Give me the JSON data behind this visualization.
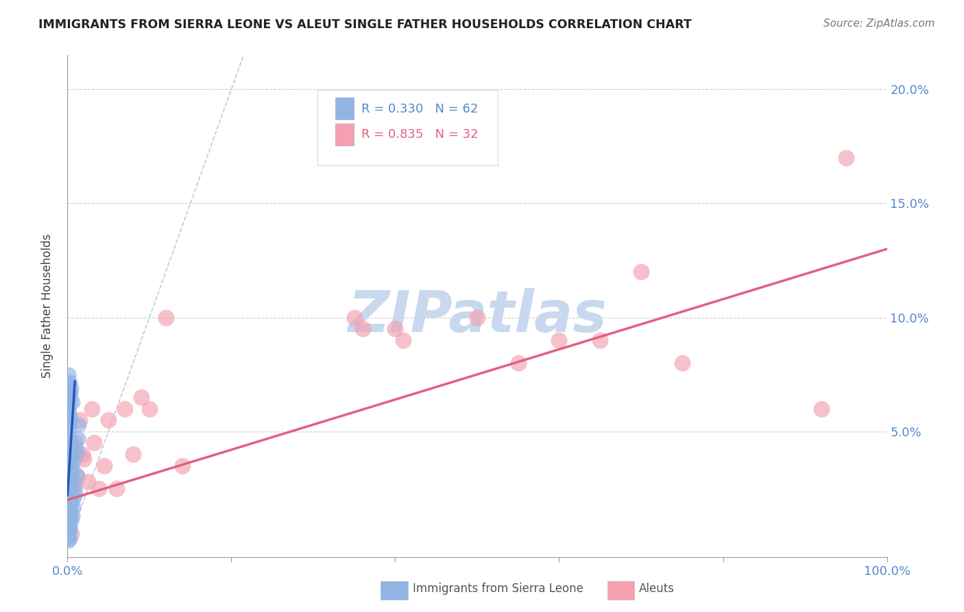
{
  "title": "IMMIGRANTS FROM SIERRA LEONE VS ALEUT SINGLE FATHER HOUSEHOLDS CORRELATION CHART",
  "source": "Source: ZipAtlas.com",
  "ylabel": "Single Father Households",
  "xlim": [
    0.0,
    1.0
  ],
  "ylim": [
    -0.005,
    0.215
  ],
  "xticks": [
    0.0,
    0.2,
    0.4,
    0.6,
    0.8,
    1.0
  ],
  "xticklabels": [
    "0.0%",
    "",
    "",
    "",
    "",
    "100.0%"
  ],
  "yticks": [
    0.0,
    0.05,
    0.1,
    0.15,
    0.2
  ],
  "yticklabels": [
    "",
    "5.0%",
    "10.0%",
    "15.0%",
    "20.0%"
  ],
  "blue_color": "#92b4e3",
  "pink_color": "#f4a0b0",
  "blue_line_color": "#2255bb",
  "pink_line_color": "#e06080",
  "legend_line1": "R = 0.330   N = 62",
  "legend_line2": "R = 0.835   N = 32",
  "legend_color1": "#5588cc",
  "legend_color2": "#e06080",
  "label_blue": "Immigrants from Sierra Leone",
  "label_pink": "Aleuts",
  "blue_scatter_x": [
    0.001,
    0.001,
    0.001,
    0.001,
    0.001,
    0.001,
    0.001,
    0.001,
    0.001,
    0.001,
    0.002,
    0.002,
    0.002,
    0.002,
    0.002,
    0.002,
    0.002,
    0.002,
    0.002,
    0.002,
    0.003,
    0.003,
    0.003,
    0.003,
    0.003,
    0.003,
    0.003,
    0.003,
    0.003,
    0.004,
    0.004,
    0.004,
    0.004,
    0.004,
    0.005,
    0.005,
    0.005,
    0.005,
    0.006,
    0.006,
    0.007,
    0.007,
    0.008,
    0.009,
    0.01,
    0.01,
    0.011,
    0.012,
    0.013,
    0.014,
    0.001,
    0.001,
    0.001,
    0.001,
    0.002,
    0.002,
    0.002,
    0.003,
    0.003,
    0.004,
    0.005,
    0.006
  ],
  "blue_scatter_y": [
    0.01,
    0.015,
    0.02,
    0.025,
    0.03,
    0.035,
    0.04,
    0.002,
    0.004,
    0.006,
    0.012,
    0.018,
    0.022,
    0.028,
    0.032,
    0.038,
    0.042,
    0.048,
    0.052,
    0.058,
    0.008,
    0.014,
    0.024,
    0.034,
    0.044,
    0.054,
    0.064,
    0.003,
    0.007,
    0.016,
    0.026,
    0.036,
    0.046,
    0.056,
    0.011,
    0.019,
    0.029,
    0.039,
    0.013,
    0.033,
    0.017,
    0.037,
    0.021,
    0.027,
    0.023,
    0.043,
    0.031,
    0.041,
    0.047,
    0.053,
    0.06,
    0.065,
    0.07,
    0.075,
    0.062,
    0.068,
    0.072,
    0.066,
    0.071,
    0.067,
    0.069,
    0.063
  ],
  "pink_scatter_x": [
    0.005,
    0.008,
    0.01,
    0.012,
    0.015,
    0.018,
    0.02,
    0.025,
    0.03,
    0.032,
    0.038,
    0.045,
    0.05,
    0.06,
    0.07,
    0.08,
    0.09,
    0.1,
    0.12,
    0.14,
    0.35,
    0.36,
    0.4,
    0.41,
    0.5,
    0.55,
    0.6,
    0.65,
    0.7,
    0.75,
    0.95,
    0.92
  ],
  "pink_scatter_y": [
    0.005,
    0.025,
    0.045,
    0.03,
    0.055,
    0.04,
    0.038,
    0.028,
    0.06,
    0.045,
    0.025,
    0.035,
    0.055,
    0.025,
    0.06,
    0.04,
    0.065,
    0.06,
    0.1,
    0.035,
    0.1,
    0.095,
    0.095,
    0.09,
    0.1,
    0.08,
    0.09,
    0.09,
    0.12,
    0.08,
    0.17,
    0.06
  ],
  "blue_trend_x": [
    0.0,
    0.009
  ],
  "blue_trend_y": [
    0.022,
    0.072
  ],
  "pink_trend_x": [
    0.0,
    1.0
  ],
  "pink_trend_y": [
    0.02,
    0.13
  ],
  "ref_line_x": [
    0.0,
    0.215
  ],
  "ref_line_y": [
    0.0,
    0.215
  ],
  "background_color": "#ffffff",
  "grid_color": "#cccccc",
  "axis_tick_color": "#5588cc",
  "title_color": "#222222",
  "watermark_text": "ZIPatlas",
  "watermark_color": "#c8d8ee"
}
